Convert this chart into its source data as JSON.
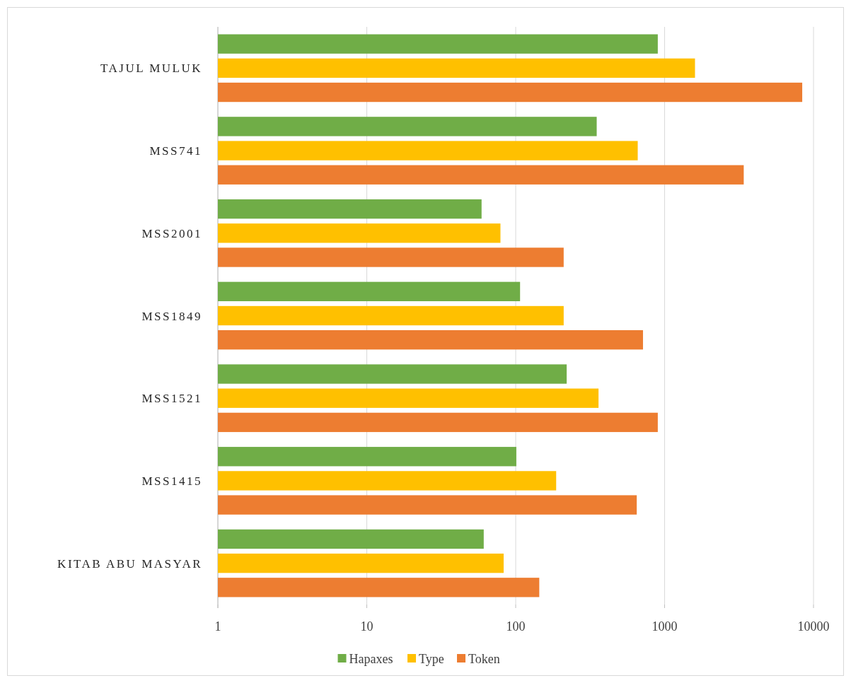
{
  "chart_data": {
    "type": "bar",
    "orientation": "horizontal",
    "log": "x",
    "categories": [
      "TAJUL MULUK",
      "MSS741",
      "MSS2001",
      "MSS1849",
      "MSS1521",
      "MSS1415",
      "KITAB ABU MASYAR"
    ],
    "series": [
      {
        "name": "Hapaxes",
        "color": "#70ad47",
        "values": [
          900,
          350,
          59,
          107,
          220,
          101,
          61
        ]
      },
      {
        "name": "Type",
        "color": "#ffc000",
        "values": [
          1600,
          660,
          79,
          210,
          360,
          187,
          83
        ]
      },
      {
        "name": "Token",
        "color": "#ed7d31",
        "values": [
          8400,
          3400,
          210,
          716,
          900,
          650,
          144
        ]
      }
    ],
    "xlim": [
      1,
      10000
    ],
    "xticks": [
      1,
      10,
      100,
      1000,
      10000
    ],
    "grid": "x",
    "legend": "bottom"
  }
}
